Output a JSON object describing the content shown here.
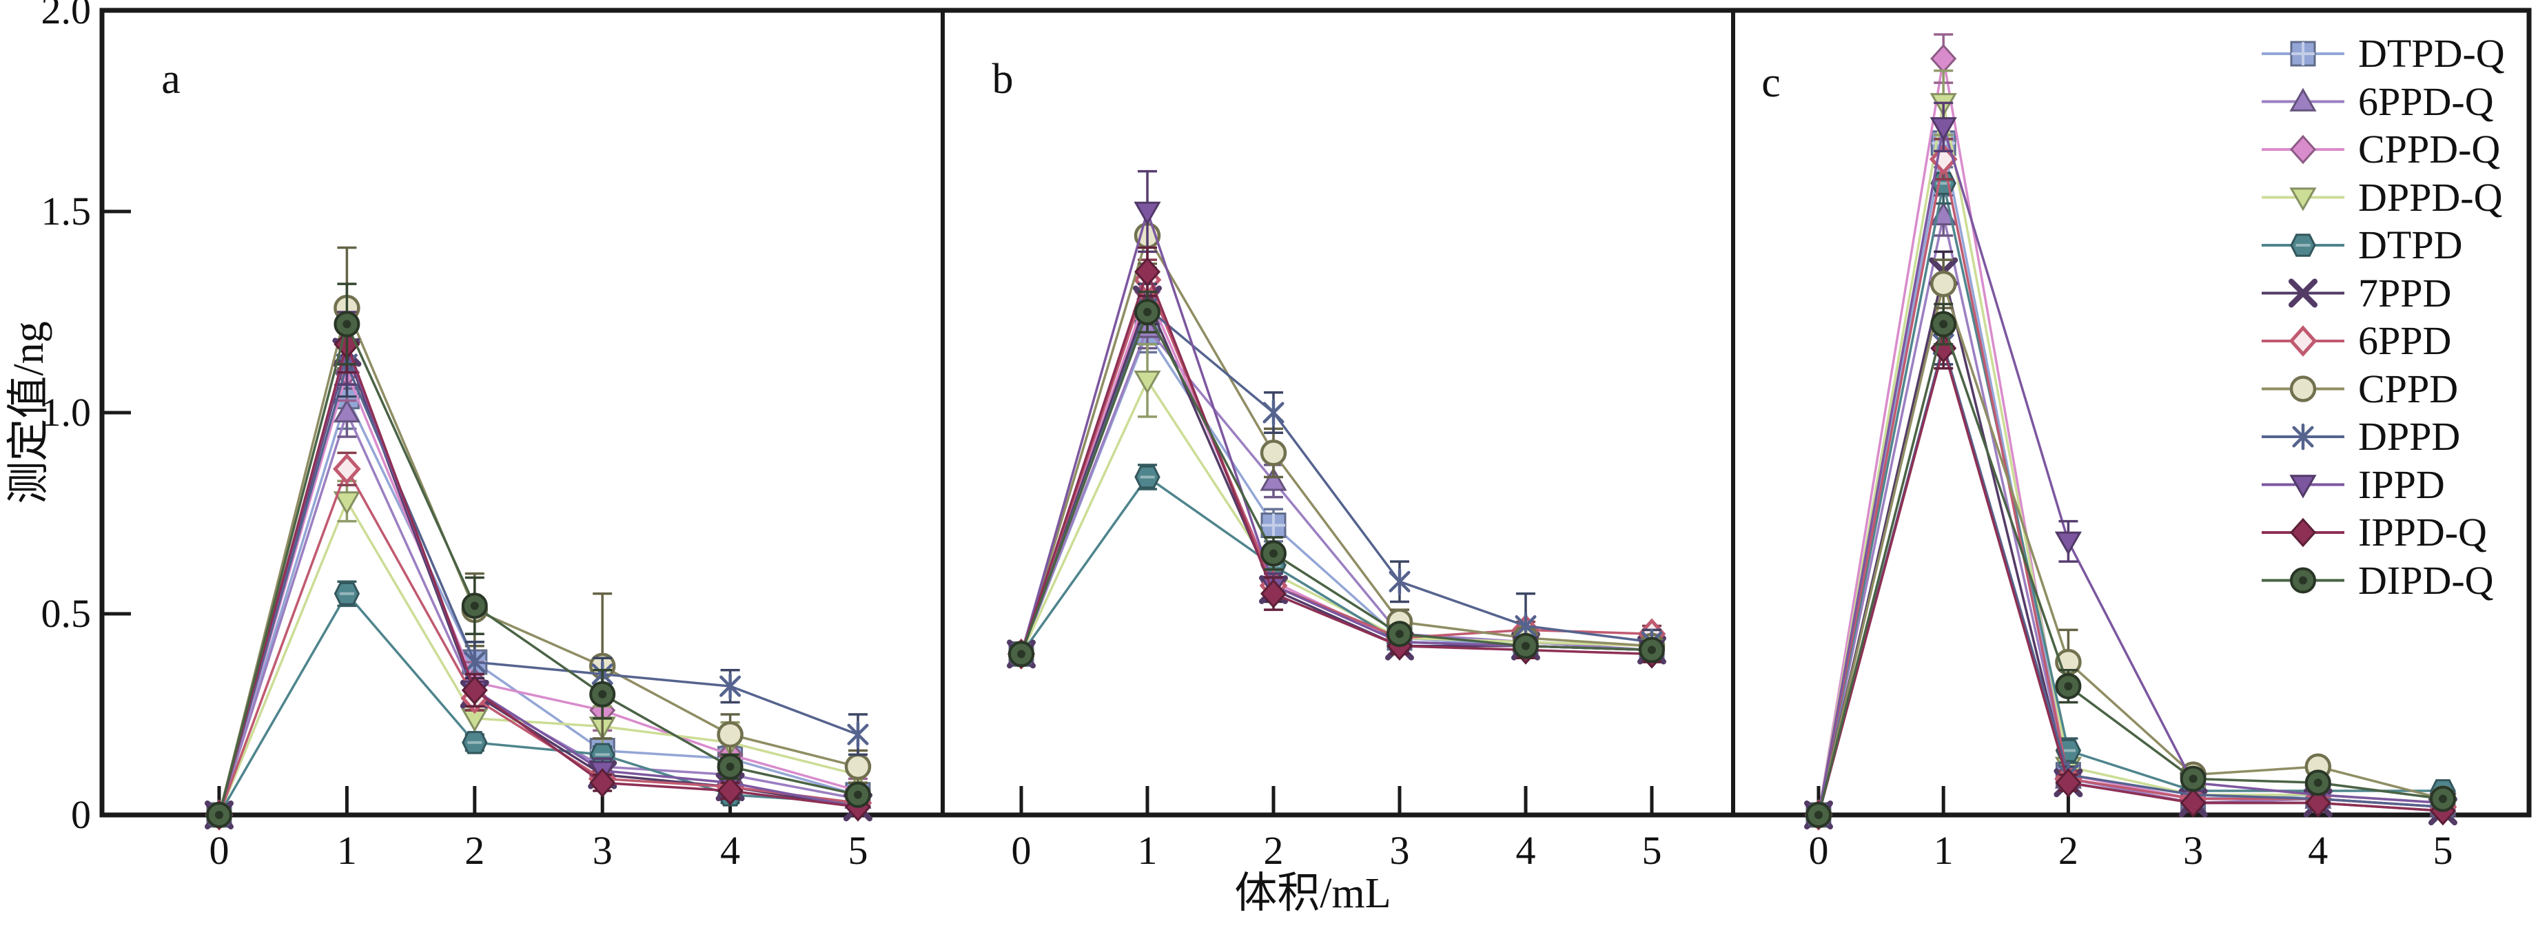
{
  "figure": {
    "y_axis_label": "测定值/ng",
    "x_axis_label": "体积/mL",
    "y_ticks": [
      "0",
      "0.5",
      "1.0",
      "1.5",
      "2.0"
    ],
    "x_ticks": [
      "0",
      "1",
      "2",
      "3",
      "4",
      "5"
    ]
  },
  "legend": {
    "position": "top-right",
    "entries": [
      "DTPD-Q",
      "6PPD-Q",
      "CPPD-Q",
      "DPPD-Q",
      "DTPD",
      "7PPD",
      "6PPD",
      "CPPD",
      "DPPD",
      "IPPD",
      "IPPD-Q",
      "DIPD-Q"
    ]
  },
  "series_styles": [
    {
      "name": "DTPD-Q",
      "color": "#94a6d6",
      "marker": "square"
    },
    {
      "name": "6PPD-Q",
      "color": "#9b7fc1",
      "marker": "triangle-up"
    },
    {
      "name": "CPPD-Q",
      "color": "#d98ccc",
      "marker": "diamond"
    },
    {
      "name": "DPPD-Q",
      "color": "#ccdd96",
      "marker": "triangle-down"
    },
    {
      "name": "DTPD",
      "color": "#4f858d",
      "marker": "hexagon"
    },
    {
      "name": "7PPD",
      "color": "#533b66",
      "marker": "x"
    },
    {
      "name": "6PPD",
      "color": "#c05a70",
      "marker": "diamond-open"
    },
    {
      "name": "CPPD",
      "color": "#8f8d63",
      "marker": "circle-open"
    },
    {
      "name": "DPPD",
      "color": "#55638e",
      "marker": "star"
    },
    {
      "name": "IPPD",
      "color": "#7c57a0",
      "marker": "triangle-down-filled"
    },
    {
      "name": "IPPD-Q",
      "color": "#8e3054",
      "marker": "diamond-filled"
    },
    {
      "name": "DIPD-Q",
      "color": "#4a6345",
      "marker": "circle-dot"
    }
  ],
  "chart_data": [
    {
      "type": "line",
      "label": "a",
      "xlabel": "体积/mL",
      "ylabel": "测定值/ng",
      "x": [
        0,
        1,
        2,
        3,
        4,
        5
      ],
      "ylim": [
        0,
        2.0
      ],
      "xlim": [
        0,
        5
      ],
      "series": [
        {
          "name": "DTPD-Q",
          "values": [
            0,
            1.04,
            0.38,
            0.16,
            0.14,
            0.05
          ],
          "errors": [
            0.01,
            0.08,
            0.05,
            0.03,
            0.03,
            0.02
          ]
        },
        {
          "name": "6PPD-Q",
          "values": [
            0,
            1.0,
            0.3,
            0.12,
            0.1,
            0.04
          ],
          "errors": [
            0.01,
            0.06,
            0.04,
            0.03,
            0.02,
            0.02
          ]
        },
        {
          "name": "CPPD-Q",
          "values": [
            0,
            1.1,
            0.33,
            0.26,
            0.15,
            0.06
          ],
          "errors": [
            0.01,
            0.07,
            0.05,
            0.05,
            0.04,
            0.03
          ]
        },
        {
          "name": "DPPD-Q",
          "values": [
            0,
            0.78,
            0.24,
            0.22,
            0.18,
            0.1
          ],
          "errors": [
            0.01,
            0.05,
            0.04,
            0.05,
            0.05,
            0.04
          ]
        },
        {
          "name": "DTPD",
          "values": [
            0,
            0.55,
            0.18,
            0.15,
            0.05,
            0.03
          ],
          "errors": [
            0.01,
            0.03,
            0.02,
            0.02,
            0.02,
            0.01
          ]
        },
        {
          "name": "7PPD",
          "values": [
            0,
            1.15,
            0.3,
            0.1,
            0.07,
            0.02
          ],
          "errors": [
            0.01,
            0.08,
            0.04,
            0.03,
            0.02,
            0.01
          ]
        },
        {
          "name": "6PPD",
          "values": [
            0,
            0.86,
            0.29,
            0.09,
            0.07,
            0.03
          ],
          "errors": [
            0.01,
            0.04,
            0.03,
            0.02,
            0.02,
            0.01
          ]
        },
        {
          "name": "CPPD",
          "values": [
            0,
            1.26,
            0.51,
            0.37,
            0.2,
            0.12
          ],
          "errors": [
            0.01,
            0.15,
            0.09,
            0.18,
            0.05,
            0.04
          ]
        },
        {
          "name": "DPPD",
          "values": [
            0,
            1.12,
            0.38,
            0.35,
            0.32,
            0.2
          ],
          "errors": [
            0.01,
            0.08,
            0.05,
            0.04,
            0.04,
            0.05
          ]
        },
        {
          "name": "IPPD",
          "values": [
            0,
            1.16,
            0.31,
            0.11,
            0.08,
            0.02
          ],
          "errors": [
            0.01,
            0.09,
            0.04,
            0.03,
            0.02,
            0.01
          ]
        },
        {
          "name": "IPPD-Q",
          "values": [
            0,
            1.17,
            0.31,
            0.08,
            0.06,
            0.02
          ],
          "errors": [
            0.01,
            0.07,
            0.04,
            0.02,
            0.02,
            0.01
          ]
        },
        {
          "name": "DIPD-Q",
          "values": [
            0,
            1.22,
            0.52,
            0.3,
            0.12,
            0.05
          ],
          "errors": [
            0.01,
            0.1,
            0.07,
            0.06,
            0.03,
            0.02
          ]
        }
      ]
    },
    {
      "type": "line",
      "label": "b",
      "xlabel": "体积/mL",
      "ylabel": "测定值/ng",
      "x": [
        0,
        1,
        2,
        3,
        4,
        5
      ],
      "ylim": [
        0,
        2.0
      ],
      "xlim": [
        0,
        5
      ],
      "series": [
        {
          "name": "DTPD-Q",
          "values": [
            0.4,
            1.2,
            0.72,
            0.44,
            0.42,
            0.41
          ],
          "errors": [
            0.01,
            0.05,
            0.04,
            0.02,
            0.02,
            0.02
          ]
        },
        {
          "name": "6PPD-Q",
          "values": [
            0.4,
            1.21,
            0.83,
            0.45,
            0.43,
            0.41
          ],
          "errors": [
            0.01,
            0.05,
            0.04,
            0.02,
            0.02,
            0.02
          ]
        },
        {
          "name": "CPPD-Q",
          "values": [
            0.4,
            1.3,
            0.58,
            0.43,
            0.42,
            0.41
          ],
          "errors": [
            0.01,
            0.06,
            0.03,
            0.02,
            0.02,
            0.02
          ]
        },
        {
          "name": "DPPD-Q",
          "values": [
            0.4,
            1.08,
            0.6,
            0.44,
            0.43,
            0.42
          ],
          "errors": [
            0.01,
            0.09,
            0.04,
            0.02,
            0.02,
            0.02
          ]
        },
        {
          "name": "DTPD",
          "values": [
            0.4,
            0.84,
            0.62,
            0.43,
            0.42,
            0.41
          ],
          "errors": [
            0.01,
            0.03,
            0.03,
            0.02,
            0.02,
            0.02
          ]
        },
        {
          "name": "7PPD",
          "values": [
            0.4,
            1.28,
            0.56,
            0.42,
            0.42,
            0.41
          ],
          "errors": [
            0.01,
            0.06,
            0.03,
            0.02,
            0.02,
            0.02
          ]
        },
        {
          "name": "6PPD",
          "values": [
            0.4,
            1.33,
            0.57,
            0.44,
            0.46,
            0.45
          ],
          "errors": [
            0.01,
            0.05,
            0.03,
            0.02,
            0.02,
            0.02
          ]
        },
        {
          "name": "CPPD",
          "values": [
            0.4,
            1.44,
            0.9,
            0.48,
            0.44,
            0.42
          ],
          "errors": [
            0.01,
            0.07,
            0.06,
            0.03,
            0.02,
            0.02
          ]
        },
        {
          "name": "DPPD",
          "values": [
            0.4,
            1.26,
            1.0,
            0.58,
            0.47,
            0.43
          ],
          "errors": [
            0.01,
            0.06,
            0.05,
            0.05,
            0.08,
            0.03
          ]
        },
        {
          "name": "IPPD",
          "values": [
            0.4,
            1.5,
            0.57,
            0.43,
            0.42,
            0.41
          ],
          "errors": [
            0.01,
            0.1,
            0.03,
            0.02,
            0.02,
            0.02
          ]
        },
        {
          "name": "IPPD-Q",
          "values": [
            0.4,
            1.35,
            0.55,
            0.42,
            0.41,
            0.4
          ],
          "errors": [
            0.01,
            0.06,
            0.04,
            0.02,
            0.02,
            0.02
          ]
        },
        {
          "name": "DIPD-Q",
          "values": [
            0.4,
            1.25,
            0.65,
            0.45,
            0.42,
            0.41
          ],
          "errors": [
            0.01,
            0.05,
            0.04,
            0.02,
            0.02,
            0.02
          ]
        }
      ]
    },
    {
      "type": "line",
      "label": "c",
      "xlabel": "体积/mL",
      "ylabel": "测定值/ng",
      "x": [
        0,
        1,
        2,
        3,
        4,
        5
      ],
      "ylim": [
        0,
        2.0
      ],
      "xlim": [
        0,
        5
      ],
      "series": [
        {
          "name": "DTPD-Q",
          "values": [
            0,
            1.67,
            0.1,
            0.04,
            0.05,
            0.03
          ],
          "errors": [
            0.01,
            0.06,
            0.02,
            0.01,
            0.01,
            0.01
          ]
        },
        {
          "name": "6PPD-Q",
          "values": [
            0,
            1.49,
            0.09,
            0.03,
            0.04,
            0.02
          ],
          "errors": [
            0.01,
            0.05,
            0.02,
            0.01,
            0.01,
            0.01
          ]
        },
        {
          "name": "CPPD-Q",
          "values": [
            0,
            1.88,
            0.1,
            0.04,
            0.04,
            0.02
          ],
          "errors": [
            0.01,
            0.06,
            0.02,
            0.01,
            0.01,
            0.01
          ]
        },
        {
          "name": "DPPD-Q",
          "values": [
            0,
            1.77,
            0.12,
            0.05,
            0.05,
            0.03
          ],
          "errors": [
            0.01,
            0.08,
            0.02,
            0.01,
            0.01,
            0.01
          ]
        },
        {
          "name": "DTPD",
          "values": [
            0,
            1.57,
            0.16,
            0.06,
            0.06,
            0.06
          ],
          "errors": [
            0.01,
            0.05,
            0.03,
            0.01,
            0.01,
            0.01
          ]
        },
        {
          "name": "7PPD",
          "values": [
            0,
            1.35,
            0.08,
            0.03,
            0.03,
            0.01
          ],
          "errors": [
            0.01,
            0.05,
            0.02,
            0.01,
            0.01,
            0.01
          ]
        },
        {
          "name": "6PPD",
          "values": [
            0,
            1.63,
            0.09,
            0.04,
            0.04,
            0.02
          ],
          "errors": [
            0.01,
            0.05,
            0.02,
            0.01,
            0.01,
            0.01
          ]
        },
        {
          "name": "CPPD",
          "values": [
            0,
            1.32,
            0.38,
            0.1,
            0.12,
            0.04
          ],
          "errors": [
            0.01,
            0.06,
            0.08,
            0.02,
            0.02,
            0.01
          ]
        },
        {
          "name": "DPPD",
          "values": [
            0,
            1.17,
            0.1,
            0.05,
            0.04,
            0.02
          ],
          "errors": [
            0.01,
            0.05,
            0.02,
            0.01,
            0.01,
            0.01
          ]
        },
        {
          "name": "IPPD",
          "values": [
            0,
            1.71,
            0.68,
            0.08,
            0.05,
            0.03
          ],
          "errors": [
            0.01,
            0.06,
            0.05,
            0.02,
            0.01,
            0.01
          ]
        },
        {
          "name": "IPPD-Q",
          "values": [
            0,
            1.16,
            0.08,
            0.03,
            0.03,
            0.01
          ],
          "errors": [
            0.01,
            0.05,
            0.02,
            0.01,
            0.01,
            0.01
          ]
        },
        {
          "name": "DIPD-Q",
          "values": [
            0,
            1.22,
            0.32,
            0.09,
            0.08,
            0.04
          ],
          "errors": [
            0.01,
            0.05,
            0.04,
            0.02,
            0.02,
            0.01
          ]
        }
      ]
    }
  ]
}
